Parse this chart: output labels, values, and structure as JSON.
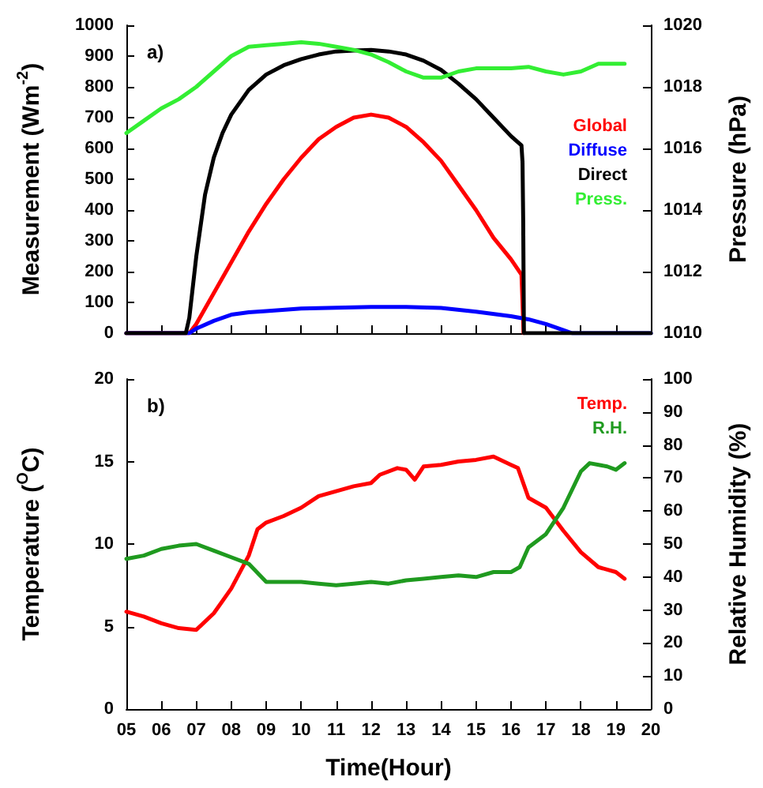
{
  "chart_data": [
    {
      "type": "line",
      "title": "a)",
      "ylabel": "Measurement (Wm$^{-2}$)",
      "y2label": "Pressure (hPa)",
      "xlim": [
        5,
        20
      ],
      "xticks": [
        5,
        6,
        7,
        8,
        9,
        10,
        11,
        12,
        13,
        14,
        15,
        16,
        17,
        18,
        19,
        20
      ],
      "ylim": [
        0,
        1000
      ],
      "yticks": [
        0,
        100,
        200,
        300,
        400,
        500,
        600,
        700,
        800,
        900,
        1000
      ],
      "y2lim": [
        1010,
        1020
      ],
      "y2ticks": [
        1010,
        1012,
        1014,
        1016,
        1018,
        1020
      ],
      "tick_labels": "y",
      "legend": "right",
      "marker": "none",
      "line_style": "solid",
      "grid": false,
      "series": [
        {
          "name": "Global",
          "color": "#ff0000",
          "x": [
            5,
            6.8,
            7,
            7.5,
            8,
            8.5,
            9,
            9.5,
            10,
            10.5,
            11,
            11.5,
            12,
            12.5,
            13,
            13.5,
            14,
            14.5,
            15,
            15.5,
            16,
            16.3,
            16.33,
            16.36
          ],
          "values": [
            0,
            0,
            30,
            130,
            230,
            330,
            420,
            500,
            570,
            630,
            670,
            700,
            710,
            700,
            670,
            620,
            560,
            480,
            400,
            310,
            240,
            190,
            100,
            0
          ]
        },
        {
          "name": "Diffuse",
          "color": "#0000ff",
          "x": [
            5,
            6.8,
            7,
            7.5,
            8,
            8.5,
            9,
            10,
            11,
            12,
            13,
            14,
            15,
            16,
            16.5,
            17,
            17.5,
            17.75,
            20
          ],
          "values": [
            0,
            0,
            15,
            40,
            60,
            68,
            72,
            80,
            83,
            85,
            85,
            82,
            70,
            55,
            45,
            30,
            10,
            0,
            0
          ]
        },
        {
          "name": "Direct",
          "color": "#000000",
          "x": [
            5,
            6.7,
            6.8,
            7,
            7.25,
            7.5,
            7.75,
            8,
            8.5,
            9,
            9.5,
            10,
            10.5,
            11,
            11.5,
            12,
            12.5,
            13,
            13.5,
            14,
            14.5,
            15,
            15.5,
            16,
            16.3,
            16.33,
            16.35,
            16.37,
            20
          ],
          "values": [
            0,
            0,
            50,
            250,
            450,
            570,
            650,
            710,
            790,
            840,
            870,
            890,
            905,
            915,
            918,
            920,
            915,
            905,
            885,
            855,
            810,
            760,
            700,
            640,
            610,
            555,
            360,
            0,
            0
          ]
        },
        {
          "name": "Press.",
          "color": "#33ee33",
          "axis": "y2",
          "x": [
            5,
            5.5,
            6,
            6.5,
            7,
            7.5,
            8,
            8.5,
            9,
            9.5,
            10,
            10.5,
            11,
            11.5,
            12,
            12.5,
            13,
            13.5,
            14,
            14.5,
            15,
            15.5,
            16,
            16.5,
            17,
            17.5,
            18,
            18.5,
            19,
            19.25
          ],
          "values": [
            1016.5,
            1016.9,
            1017.3,
            1017.6,
            1018.0,
            1018.5,
            1019.0,
            1019.3,
            1019.35,
            1019.4,
            1019.45,
            1019.4,
            1019.3,
            1019.2,
            1019.05,
            1018.8,
            1018.5,
            1018.3,
            1018.3,
            1018.5,
            1018.6,
            1018.6,
            1018.6,
            1018.65,
            1018.5,
            1018.4,
            1018.5,
            1018.75,
            1018.75,
            1018.75
          ]
        }
      ]
    },
    {
      "type": "line",
      "title": "b)",
      "xlabel": "Time(Hour)",
      "ylabel": "Temperature ($^{O}$C)",
      "y2label": "Relative Humidity (%)",
      "xlim": [
        5,
        20
      ],
      "xticks": [
        {
          "value": 5,
          "label": "05"
        },
        {
          "value": 6,
          "label": "06"
        },
        {
          "value": 7,
          "label": "07"
        },
        {
          "value": 8,
          "label": "08"
        },
        {
          "value": 9,
          "label": "09"
        },
        {
          "value": 10,
          "label": "10"
        },
        {
          "value": 11,
          "label": "11"
        },
        {
          "value": 12,
          "label": "12"
        },
        {
          "value": 13,
          "label": "13"
        },
        {
          "value": 14,
          "label": "14"
        },
        {
          "value": 15,
          "label": "15"
        },
        {
          "value": 16,
          "label": "16"
        },
        {
          "value": 17,
          "label": "17"
        },
        {
          "value": 18,
          "label": "18"
        },
        {
          "value": 19,
          "label": "19"
        },
        {
          "value": 20,
          "label": "20"
        }
      ],
      "ylim": [
        0,
        20
      ],
      "yticks": [
        0,
        5,
        10,
        15,
        20
      ],
      "y2lim": [
        0,
        100
      ],
      "y2ticks": [
        0,
        10,
        20,
        30,
        40,
        50,
        60,
        70,
        80,
        90,
        100
      ],
      "legend": "top right",
      "marker": "none",
      "line_style": "solid",
      "grid": false,
      "series": [
        {
          "name": "Temp.",
          "color": "#ff0000",
          "x": [
            5,
            5.5,
            6,
            6.5,
            7,
            7.5,
            8,
            8.5,
            8.75,
            9,
            9.5,
            10,
            10.5,
            11,
            11.5,
            12,
            12.25,
            12.75,
            13,
            13.25,
            13.5,
            14,
            14.5,
            15,
            15.5,
            16,
            16.2,
            16.5,
            17,
            17.5,
            18,
            18.5,
            19,
            19.25
          ],
          "values": [
            5.9,
            5.6,
            5.2,
            4.9,
            4.8,
            5.8,
            7.3,
            9.3,
            10.9,
            11.3,
            11.7,
            12.2,
            12.9,
            13.2,
            13.5,
            13.7,
            14.2,
            14.6,
            14.5,
            13.9,
            14.7,
            14.8,
            15.0,
            15.1,
            15.3,
            14.8,
            14.6,
            12.8,
            12.2,
            10.8,
            9.5,
            8.6,
            8.3,
            7.9
          ]
        },
        {
          "name": "R.H.",
          "color": "#1f9a1f",
          "axis": "y2",
          "x": [
            5,
            5.5,
            6,
            6.5,
            7,
            7.5,
            8,
            8.5,
            9,
            9.5,
            10,
            10.5,
            11,
            11.5,
            12,
            12.5,
            13,
            13.5,
            14,
            14.5,
            15,
            15.5,
            16,
            16.25,
            16.5,
            17,
            17.5,
            18,
            18.25,
            18.75,
            19,
            19.25
          ],
          "values": [
            45.5,
            46.5,
            48.5,
            49.5,
            50,
            48,
            46,
            44,
            38.5,
            38.5,
            38.5,
            38,
            37.5,
            38,
            38.5,
            38,
            39,
            39.5,
            40,
            40.5,
            40,
            41.5,
            41.5,
            43,
            49,
            53,
            61,
            72,
            74.5,
            73.5,
            72.5,
            74.5
          ]
        }
      ]
    }
  ]
}
